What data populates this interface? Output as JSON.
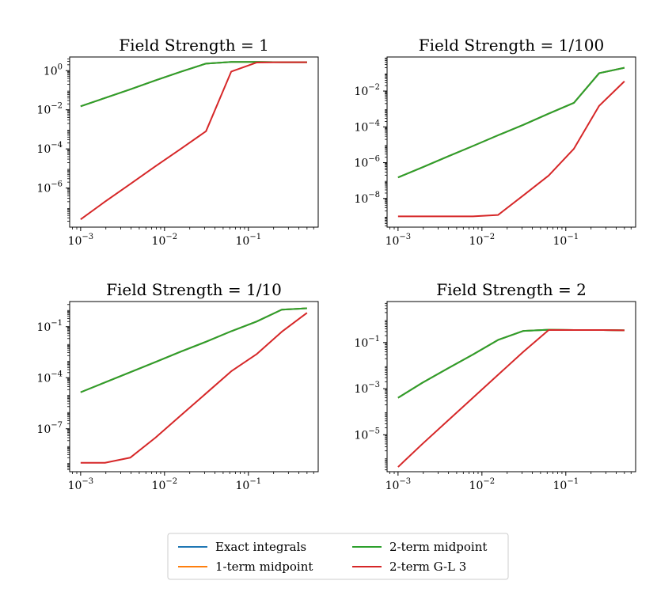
{
  "figure": {
    "legend": {
      "entries": [
        {
          "label": "Exact integrals",
          "color": "#1f77b4"
        },
        {
          "label": "1-term midpoint",
          "color": "#ff7f0e"
        },
        {
          "label": "2-term midpoint",
          "color": "#2ca02c"
        },
        {
          "label": "2-term G-L 3",
          "color": "#d62728"
        }
      ],
      "placement": "bottom-center"
    }
  },
  "chart_data": [
    {
      "type": "line",
      "title": "Field Strength = 1",
      "xscale": "log",
      "yscale": "log",
      "xlim": [
        0.00074,
        0.68
      ],
      "ylim": [
        1e-08,
        5.0
      ],
      "xticks": [
        {
          "v": 0.001,
          "base": "10",
          "exp": "−3"
        },
        {
          "v": 0.01,
          "base": "10",
          "exp": "−2"
        },
        {
          "v": 0.1,
          "base": "10",
          "exp": "−1"
        }
      ],
      "yticks": [
        {
          "v": 1e-06,
          "base": "10",
          "exp": "−6"
        },
        {
          "v": 0.0001,
          "base": "10",
          "exp": "−4"
        },
        {
          "v": 0.01,
          "base": "10",
          "exp": "−2"
        },
        {
          "v": 1,
          "base": "10",
          "exp": "0"
        }
      ],
      "series": [
        {
          "name": "Exact integrals",
          "color": "#1f77b4",
          "points": [
            [
              0.001,
              0.015
            ],
            [
              0.00195,
              0.04
            ],
            [
              0.0039,
              0.11
            ],
            [
              0.0078,
              0.32
            ],
            [
              0.0156,
              0.88
            ],
            [
              0.03125,
              2.3
            ],
            [
              0.0625,
              2.8
            ],
            [
              0.125,
              2.8
            ],
            [
              0.25,
              2.7
            ],
            [
              0.5,
              2.7
            ]
          ]
        },
        {
          "name": "1-term midpoint",
          "color": "#ff7f0e",
          "points": [
            [
              0.001,
              0.015
            ],
            [
              0.00195,
              0.04
            ],
            [
              0.0039,
              0.11
            ],
            [
              0.0078,
              0.32
            ],
            [
              0.0156,
              0.88
            ],
            [
              0.03125,
              2.3
            ],
            [
              0.0625,
              2.8
            ],
            [
              0.125,
              2.8
            ],
            [
              0.25,
              2.7
            ],
            [
              0.5,
              2.7
            ]
          ]
        },
        {
          "name": "2-term midpoint",
          "color": "#2ca02c",
          "points": [
            [
              0.001,
              0.015
            ],
            [
              0.00195,
              0.04
            ],
            [
              0.0039,
              0.11
            ],
            [
              0.0078,
              0.32
            ],
            [
              0.0156,
              0.88
            ],
            [
              0.03125,
              2.3
            ],
            [
              0.0625,
              2.8
            ],
            [
              0.125,
              2.8
            ],
            [
              0.25,
              2.7
            ],
            [
              0.5,
              2.7
            ]
          ]
        },
        {
          "name": "2-term G-L 3",
          "color": "#d62728",
          "points": [
            [
              0.001,
              2.5e-08
            ],
            [
              0.00195,
              2e-07
            ],
            [
              0.0039,
              1.6e-06
            ],
            [
              0.0078,
              1.3e-05
            ],
            [
              0.0156,
              0.0001
            ],
            [
              0.03125,
              0.0008
            ],
            [
              0.0625,
              0.9
            ],
            [
              0.125,
              2.6
            ],
            [
              0.25,
              2.7
            ],
            [
              0.5,
              2.7
            ]
          ]
        }
      ]
    },
    {
      "type": "line",
      "title": "Field Strength = 1/100",
      "xscale": "log",
      "yscale": "log",
      "xlim": [
        0.00074,
        0.68
      ],
      "ylim": [
        2.5e-10,
        0.8
      ],
      "xticks": [
        {
          "v": 0.001,
          "base": "10",
          "exp": "−3"
        },
        {
          "v": 0.01,
          "base": "10",
          "exp": "−2"
        },
        {
          "v": 0.1,
          "base": "10",
          "exp": "−1"
        }
      ],
      "yticks": [
        {
          "v": 1e-08,
          "base": "10",
          "exp": "−8"
        },
        {
          "v": 1e-06,
          "base": "10",
          "exp": "−6"
        },
        {
          "v": 0.0001,
          "base": "10",
          "exp": "−4"
        },
        {
          "v": 0.01,
          "base": "10",
          "exp": "−2"
        }
      ],
      "series": [
        {
          "name": "Exact integrals",
          "color": "#1f77b4",
          "points": [
            [
              0.001,
              1.5e-07
            ],
            [
              0.00195,
              5.5e-07
            ],
            [
              0.0039,
              2.2e-06
            ],
            [
              0.0078,
              8.5e-06
            ],
            [
              0.0156,
              3.4e-05
            ],
            [
              0.03125,
              0.00013
            ],
            [
              0.0625,
              0.00055
            ],
            [
              0.125,
              0.0022
            ],
            [
              0.25,
              0.1
            ],
            [
              0.5,
              0.2
            ]
          ]
        },
        {
          "name": "1-term midpoint",
          "color": "#ff7f0e",
          "points": [
            [
              0.001,
              1.5e-07
            ],
            [
              0.00195,
              5.5e-07
            ],
            [
              0.0039,
              2.2e-06
            ],
            [
              0.0078,
              8.5e-06
            ],
            [
              0.0156,
              3.4e-05
            ],
            [
              0.03125,
              0.00013
            ],
            [
              0.0625,
              0.00055
            ],
            [
              0.125,
              0.0022
            ],
            [
              0.25,
              0.1
            ],
            [
              0.5,
              0.2
            ]
          ]
        },
        {
          "name": "2-term midpoint",
          "color": "#2ca02c",
          "points": [
            [
              0.001,
              1.5e-07
            ],
            [
              0.00195,
              5.5e-07
            ],
            [
              0.0039,
              2.2e-06
            ],
            [
              0.0078,
              8.5e-06
            ],
            [
              0.0156,
              3.4e-05
            ],
            [
              0.03125,
              0.00013
            ],
            [
              0.0625,
              0.00055
            ],
            [
              0.125,
              0.0022
            ],
            [
              0.25,
              0.1
            ],
            [
              0.5,
              0.2
            ]
          ]
        },
        {
          "name": "2-term G-L 3",
          "color": "#d62728",
          "points": [
            [
              0.001,
              1e-09
            ],
            [
              0.00195,
              1e-09
            ],
            [
              0.0039,
              1e-09
            ],
            [
              0.0078,
              1e-09
            ],
            [
              0.0156,
              1.2e-09
            ],
            [
              0.03125,
              1.5e-08
            ],
            [
              0.0625,
              1.9e-07
            ],
            [
              0.125,
              6e-06
            ],
            [
              0.25,
              0.0015
            ],
            [
              0.5,
              0.035
            ]
          ]
        }
      ]
    },
    {
      "type": "line",
      "title": "Field Strength = 1/10",
      "xscale": "log",
      "yscale": "log",
      "xlim": [
        0.00074,
        0.68
      ],
      "ylim": [
        3e-10,
        3.0
      ],
      "xticks": [
        {
          "v": 0.001,
          "base": "10",
          "exp": "−3"
        },
        {
          "v": 0.01,
          "base": "10",
          "exp": "−2"
        },
        {
          "v": 0.1,
          "base": "10",
          "exp": "−1"
        }
      ],
      "yticks": [
        {
          "v": 1e-07,
          "base": "10",
          "exp": "−7"
        },
        {
          "v": 0.0001,
          "base": "10",
          "exp": "−4"
        },
        {
          "v": 0.1,
          "base": "10",
          "exp": "−1"
        }
      ],
      "series": [
        {
          "name": "Exact integrals",
          "color": "#1f77b4",
          "points": [
            [
              0.001,
              1.4e-05
            ],
            [
              0.00195,
              5.3e-05
            ],
            [
              0.0039,
              0.00021
            ],
            [
              0.0078,
              0.00084
            ],
            [
              0.0156,
              0.0034
            ],
            [
              0.03125,
              0.013
            ],
            [
              0.0625,
              0.054
            ],
            [
              0.125,
              0.2
            ],
            [
              0.25,
              1.0
            ],
            [
              0.5,
              1.2
            ]
          ]
        },
        {
          "name": "1-term midpoint",
          "color": "#ff7f0e",
          "points": [
            [
              0.001,
              1.4e-05
            ],
            [
              0.00195,
              5.3e-05
            ],
            [
              0.0039,
              0.00021
            ],
            [
              0.0078,
              0.00084
            ],
            [
              0.0156,
              0.0034
            ],
            [
              0.03125,
              0.013
            ],
            [
              0.0625,
              0.054
            ],
            [
              0.125,
              0.2
            ],
            [
              0.25,
              1.0
            ],
            [
              0.5,
              1.2
            ]
          ]
        },
        {
          "name": "2-term midpoint",
          "color": "#2ca02c",
          "points": [
            [
              0.001,
              1.4e-05
            ],
            [
              0.00195,
              5.3e-05
            ],
            [
              0.0039,
              0.00021
            ],
            [
              0.0078,
              0.00084
            ],
            [
              0.0156,
              0.0034
            ],
            [
              0.03125,
              0.013
            ],
            [
              0.0625,
              0.054
            ],
            [
              0.125,
              0.2
            ],
            [
              0.25,
              1.0
            ],
            [
              0.5,
              1.2
            ]
          ]
        },
        {
          "name": "2-term G-L 3",
          "color": "#d62728",
          "points": [
            [
              0.001,
              1e-09
            ],
            [
              0.00195,
              1e-09
            ],
            [
              0.0039,
              2e-09
            ],
            [
              0.0078,
              3e-08
            ],
            [
              0.0156,
              6e-07
            ],
            [
              0.03125,
              1.2e-05
            ],
            [
              0.0625,
              0.00024
            ],
            [
              0.125,
              0.0024
            ],
            [
              0.25,
              0.05
            ],
            [
              0.5,
              0.65
            ]
          ]
        }
      ]
    },
    {
      "type": "line",
      "title": "Field Strength = 2",
      "xscale": "log",
      "yscale": "log",
      "xlim": [
        0.00074,
        0.68
      ],
      "ylim": [
        2.5e-07,
        6.0
      ],
      "xticks": [
        {
          "v": 0.001,
          "base": "10",
          "exp": "−3"
        },
        {
          "v": 0.01,
          "base": "10",
          "exp": "−2"
        },
        {
          "v": 0.1,
          "base": "10",
          "exp": "−1"
        }
      ],
      "yticks": [
        {
          "v": 1e-05,
          "base": "10",
          "exp": "−5"
        },
        {
          "v": 0.001,
          "base": "10",
          "exp": "−3"
        },
        {
          "v": 0.1,
          "base": "10",
          "exp": "−1"
        }
      ],
      "series": [
        {
          "name": "Exact integrals",
          "color": "#1f77b4",
          "points": [
            [
              0.001,
              0.0004
            ],
            [
              0.00195,
              0.0018
            ],
            [
              0.0039,
              0.0075
            ],
            [
              0.0078,
              0.03
            ],
            [
              0.0156,
              0.13
            ],
            [
              0.03125,
              0.32
            ],
            [
              0.0625,
              0.36
            ],
            [
              0.125,
              0.35
            ],
            [
              0.25,
              0.35
            ],
            [
              0.5,
              0.34
            ]
          ]
        },
        {
          "name": "1-term midpoint",
          "color": "#ff7f0e",
          "points": [
            [
              0.001,
              0.0004
            ],
            [
              0.00195,
              0.0018
            ],
            [
              0.0039,
              0.0075
            ],
            [
              0.0078,
              0.03
            ],
            [
              0.0156,
              0.13
            ],
            [
              0.03125,
              0.32
            ],
            [
              0.0625,
              0.36
            ],
            [
              0.125,
              0.35
            ],
            [
              0.25,
              0.35
            ],
            [
              0.5,
              0.34
            ]
          ]
        },
        {
          "name": "2-term midpoint",
          "color": "#2ca02c",
          "points": [
            [
              0.001,
              0.0004
            ],
            [
              0.00195,
              0.0018
            ],
            [
              0.0039,
              0.0075
            ],
            [
              0.0078,
              0.03
            ],
            [
              0.0156,
              0.13
            ],
            [
              0.03125,
              0.32
            ],
            [
              0.0625,
              0.36
            ],
            [
              0.125,
              0.35
            ],
            [
              0.25,
              0.35
            ],
            [
              0.5,
              0.34
            ]
          ]
        },
        {
          "name": "2-term G-L 3",
          "color": "#d62728",
          "points": [
            [
              0.001,
              4e-07
            ],
            [
              0.00195,
              4e-06
            ],
            [
              0.0039,
              4e-05
            ],
            [
              0.0078,
              0.0004
            ],
            [
              0.0156,
              0.004
            ],
            [
              0.03125,
              0.04
            ],
            [
              0.0625,
              0.35
            ],
            [
              0.125,
              0.35
            ],
            [
              0.25,
              0.35
            ],
            [
              0.5,
              0.34
            ]
          ]
        }
      ]
    }
  ]
}
